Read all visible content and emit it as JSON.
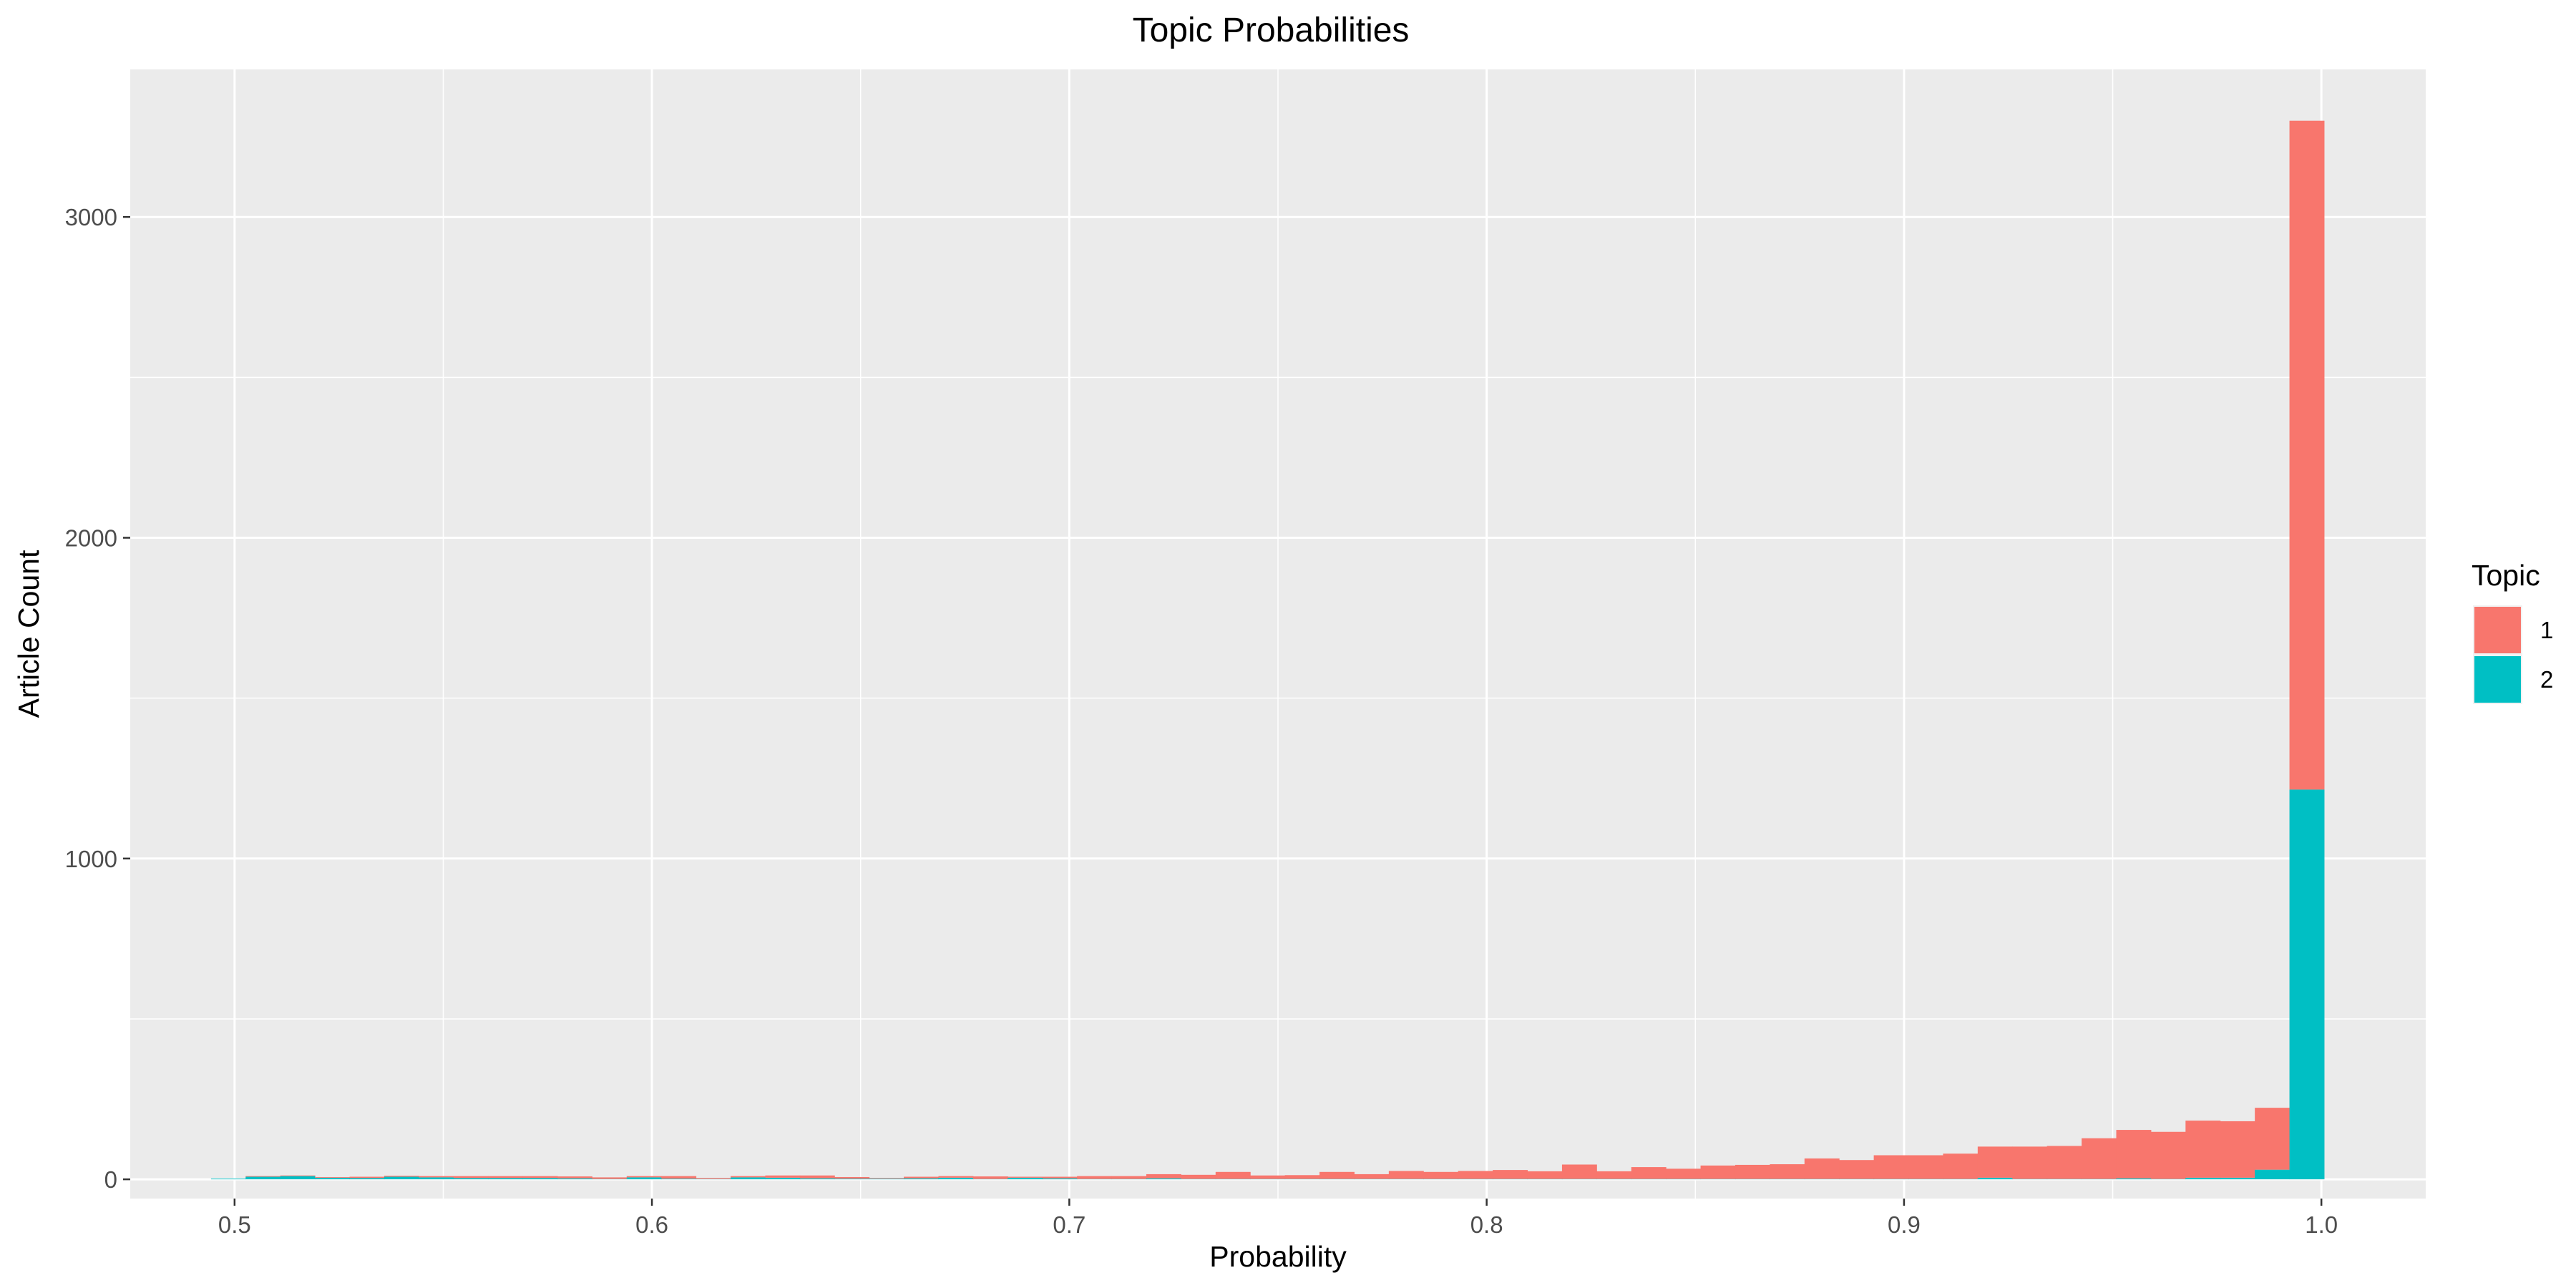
{
  "chart_data": {
    "type": "bar",
    "subtype": "stacked-histogram",
    "title": "Topic Probabilities",
    "xlabel": "Probability",
    "ylabel": "Article Count",
    "xlim": [
      0.475,
      1.025
    ],
    "ylim": [
      -60,
      3460
    ],
    "x_ticks": [
      0.5,
      0.6,
      0.7,
      0.8,
      0.9,
      1.0
    ],
    "x_tick_labels": [
      "0.5",
      "0.6",
      "0.7",
      "0.8",
      "0.9",
      "1.0"
    ],
    "y_ticks": [
      0,
      1000,
      2000,
      3000
    ],
    "y_tick_labels": [
      "0",
      "1000",
      "2000",
      "3000"
    ],
    "grid": true,
    "bin_width": 0.0083,
    "bin_centers": [
      0.4985,
      0.5068,
      0.5151,
      0.5234,
      0.5317,
      0.54,
      0.5483,
      0.5566,
      0.5649,
      0.5732,
      0.5815,
      0.5898,
      0.5981,
      0.6064,
      0.6147,
      0.623,
      0.6313,
      0.6396,
      0.6479,
      0.6562,
      0.6645,
      0.6728,
      0.6811,
      0.6894,
      0.6977,
      0.706,
      0.7143,
      0.7226,
      0.7309,
      0.7392,
      0.7475,
      0.7558,
      0.7641,
      0.7724,
      0.7807,
      0.789,
      0.7973,
      0.8056,
      0.8139,
      0.8222,
      0.8305,
      0.8388,
      0.8471,
      0.8554,
      0.8637,
      0.872,
      0.8803,
      0.8886,
      0.8969,
      0.9052,
      0.9135,
      0.9218,
      0.9301,
      0.9384,
      0.9467,
      0.955,
      0.9633,
      0.9716,
      0.9799,
      0.9882,
      0.9965
    ],
    "legend": {
      "title": "Topic",
      "position": "right"
    },
    "series": [
      {
        "name": "2",
        "color": "#00BFC4",
        "values": [
          2,
          8,
          10,
          5,
          4,
          8,
          6,
          4,
          4,
          4,
          3,
          1,
          6,
          2,
          1,
          6,
          5,
          3,
          2,
          2,
          3,
          5,
          1,
          5,
          3,
          1,
          1,
          3,
          1,
          1,
          1,
          1,
          1,
          1,
          1,
          1,
          1,
          1,
          1,
          1,
          1,
          1,
          1,
          1,
          1,
          1,
          1,
          1,
          1,
          1,
          1,
          5,
          1,
          1,
          1,
          3,
          1,
          5,
          5,
          30,
          1215
        ]
      },
      {
        "name": "1",
        "color": "#F8766D",
        "values": [
          0,
          2,
          2,
          2,
          4,
          3,
          4,
          6,
          6,
          6,
          6,
          5,
          4,
          8,
          3,
          4,
          7,
          9,
          5,
          2,
          5,
          5,
          8,
          3,
          5,
          9,
          9,
          13,
          13,
          22,
          11,
          12,
          22,
          15,
          25,
          22,
          25,
          28,
          24,
          45,
          24,
          37,
          32,
          42,
          44,
          46,
          64,
          59,
          74,
          74,
          79,
          97,
          101,
          103,
          127,
          151,
          147,
          178,
          176,
          193,
          2085
        ]
      }
    ]
  }
}
